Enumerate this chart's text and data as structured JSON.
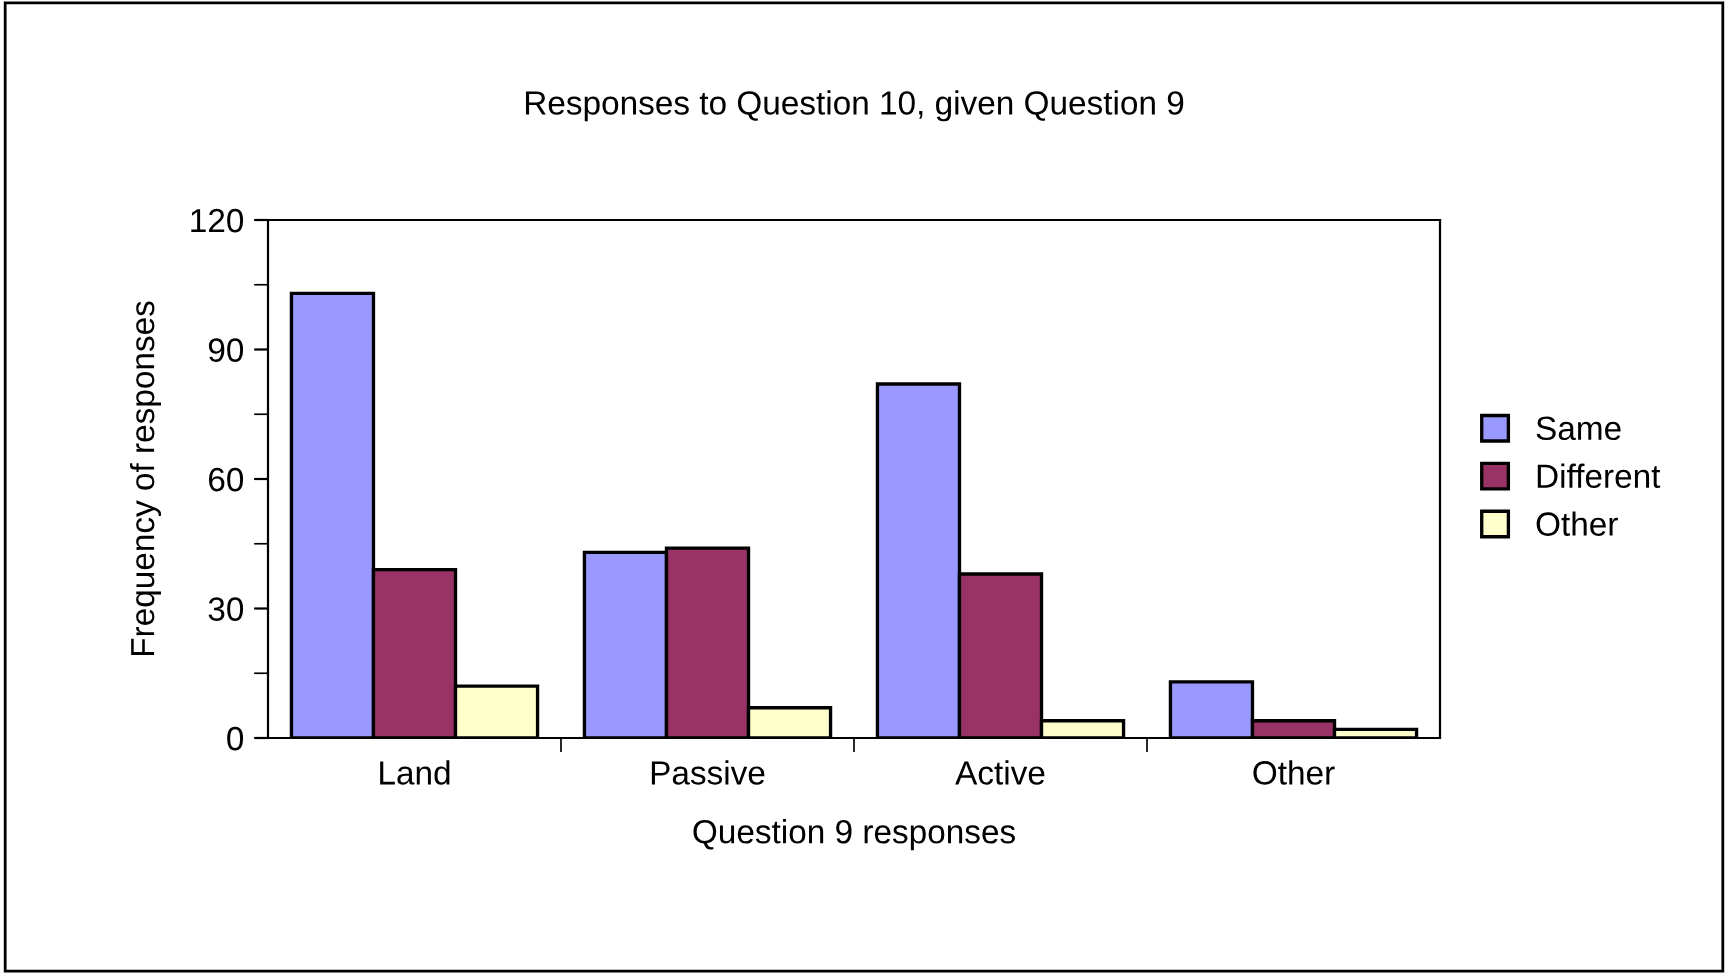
{
  "chart_data": {
    "type": "bar",
    "title": "Responses to Question 10, given Question 9",
    "xlabel": "Question 9 responses",
    "ylabel": "Frequency of responses",
    "categories": [
      "Land",
      "Passive",
      "Active",
      "Other"
    ],
    "series": [
      {
        "name": "Same",
        "color": "#9999ff",
        "values": [
          103,
          43,
          82,
          13
        ]
      },
      {
        "name": "Different",
        "color": "#993366",
        "values": [
          39,
          44,
          38,
          4
        ]
      },
      {
        "name": "Other",
        "color": "#ffffcc",
        "values": [
          12,
          7,
          4,
          2
        ]
      }
    ],
    "ylim": [
      0,
      120
    ],
    "yticks": [
      0,
      30,
      60,
      90,
      120
    ],
    "grid": false,
    "legend": "right"
  }
}
